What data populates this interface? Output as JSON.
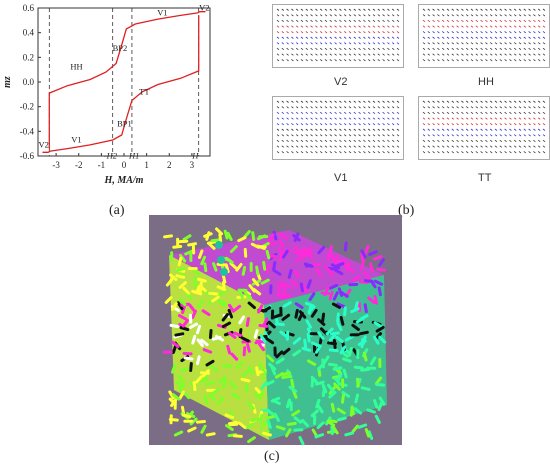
{
  "figure": {
    "panel_a": {
      "caption": "(a)",
      "chart_data": {
        "type": "line",
        "xlabel": "H, MA/m",
        "ylabel": "mz",
        "xlim": [
          -3.8,
          3.8
        ],
        "ylim": [
          -0.6,
          0.6
        ],
        "xticks": [
          "-3",
          "-2",
          "-1",
          "0",
          "1",
          "2",
          "3"
        ],
        "yticks": [
          "0.6",
          "0.4",
          "0.2",
          "0.0",
          "-0.2",
          "-0.4",
          "-0.6"
        ],
        "branches": [
          {
            "name": "upper",
            "x": [
              -3.3,
              -3.3,
              -2.5,
              -1.5,
              -0.8,
              -0.35,
              -0.1,
              0.1,
              0.5,
              1.5,
              2.5,
              3.25,
              3.35,
              3.6
            ],
            "y": [
              -0.54,
              -0.09,
              -0.03,
              0.02,
              0.08,
              0.15,
              0.3,
              0.43,
              0.47,
              0.51,
              0.54,
              0.56,
              0.57,
              0.57
            ]
          },
          {
            "name": "lower",
            "x": [
              -3.6,
              -3.35,
              -3.25,
              -2.5,
              -1.5,
              -0.5,
              -0.1,
              0.1,
              0.35,
              0.8,
              1.5,
              2.5,
              3.3,
              3.3
            ],
            "y": [
              -0.57,
              -0.57,
              -0.56,
              -0.54,
              -0.51,
              -0.47,
              -0.43,
              -0.3,
              -0.15,
              -0.08,
              -0.02,
              0.03,
              0.09,
              0.54
            ]
          }
        ],
        "annotations": [
          "V1",
          "HH",
          "TT",
          "V1",
          "BP2",
          "BP1",
          "V2",
          "V2",
          "-H2",
          "H1",
          "H"
        ],
        "dashed_lines_x": [
          -3.3,
          -0.5,
          0.35,
          3.3
        ]
      }
    },
    "panel_b": {
      "caption": "(b)",
      "maps": [
        {
          "label": "V2",
          "colors": [
            "#cc2a2a",
            "#2a36c8"
          ]
        },
        {
          "label": "HH",
          "colors": [
            "#cc2a2a",
            "#2a36c8"
          ]
        },
        {
          "label": "V1",
          "colors": [
            "#2a36c8",
            "#cc2a2a"
          ]
        },
        {
          "label": "TT",
          "colors": [
            "#cc2a2a",
            "#2a36c8"
          ]
        }
      ]
    },
    "panel_c": {
      "caption": "(c)",
      "background": "#7a6d85"
    }
  }
}
